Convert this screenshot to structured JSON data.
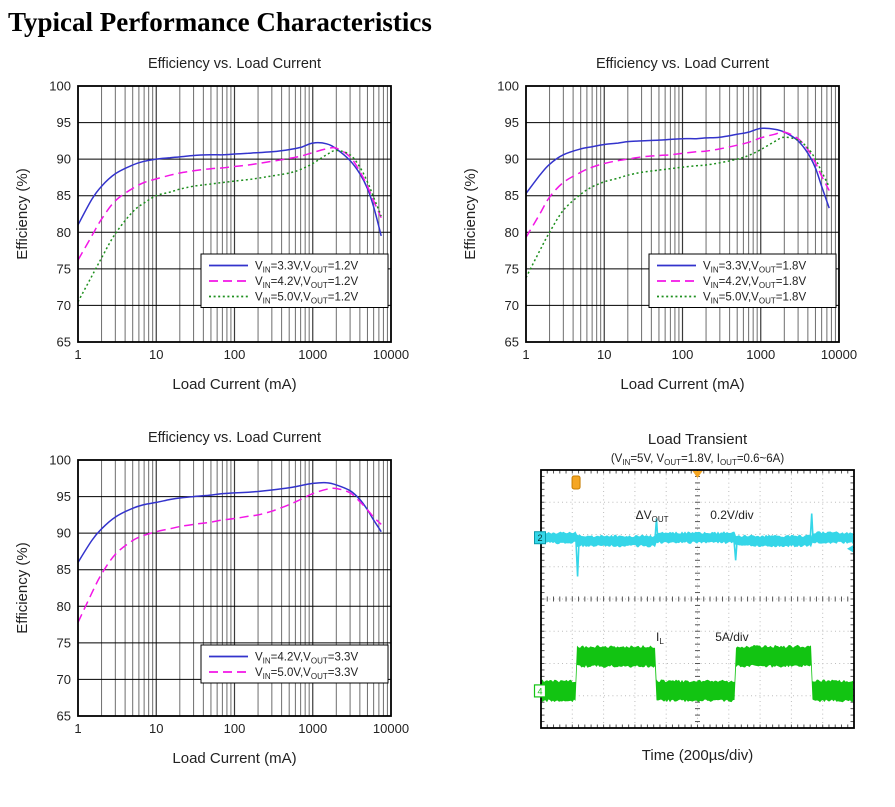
{
  "page": {
    "title": "Typical Performance Characteristics"
  },
  "colors": {
    "blue": "#3333cc",
    "magenta": "#f316e6",
    "green": "#1d8f1d",
    "scope_cyan": "#35d6e8",
    "scope_green": "#12c412",
    "orange": "#f5a623",
    "grid_minor": "#6e6e6e",
    "grid_major": "#3a3a3a",
    "axis": "#000000",
    "text": "#222222",
    "scope_grid": "#bdbdbd",
    "scope_ticks": "#555555"
  },
  "chart_data": [
    {
      "type": "line",
      "title": "Efficiency vs. Load Current",
      "xlabel": "Load Current (mA)",
      "ylabel": "Efficiency (%)",
      "xscale": "log",
      "xlim": [
        1,
        10000
      ],
      "ylim": [
        65,
        100
      ],
      "xticks": [
        1,
        10,
        100,
        1000,
        10000
      ],
      "yticks": [
        65,
        70,
        75,
        80,
        85,
        90,
        95,
        100
      ],
      "legend_position": "bottom-right",
      "series": [
        {
          "vin": "3.3V",
          "vout": "1.2V",
          "color": "blue",
          "style": "solid",
          "x": [
            1,
            1.5,
            2,
            3,
            5,
            7,
            10,
            15,
            20,
            30,
            50,
            70,
            100,
            150,
            200,
            300,
            500,
            700,
            1000,
            1500,
            2000,
            3000,
            4000,
            5000,
            6000,
            7500
          ],
          "y": [
            81.0,
            84.5,
            86.3,
            88.0,
            89.2,
            89.7,
            90.0,
            90.2,
            90.3,
            90.5,
            90.6,
            90.6,
            90.7,
            90.8,
            90.9,
            91.0,
            91.3,
            91.6,
            92.2,
            92.1,
            91.4,
            89.8,
            88.0,
            86.0,
            83.5,
            79.5
          ]
        },
        {
          "vin": "4.2V",
          "vout": "1.2V",
          "color": "magenta",
          "style": "dash",
          "x": [
            1,
            1.5,
            2,
            3,
            5,
            7,
            10,
            15,
            20,
            30,
            50,
            70,
            100,
            150,
            200,
            300,
            500,
            700,
            1000,
            1500,
            2000,
            3000,
            4000,
            5000,
            6000,
            7500
          ],
          "y": [
            76.2,
            79.5,
            81.8,
            84.3,
            86.0,
            86.8,
            87.3,
            87.8,
            88.1,
            88.4,
            88.7,
            88.8,
            89.0,
            89.2,
            89.4,
            89.7,
            90.1,
            90.4,
            90.9,
            91.4,
            91.5,
            90.3,
            88.3,
            86.3,
            84.3,
            82.0
          ]
        },
        {
          "vin": "5.0V",
          "vout": "1.2V",
          "color": "green",
          "style": "dot",
          "x": [
            1,
            1.5,
            2,
            3,
            5,
            7,
            10,
            15,
            20,
            30,
            50,
            70,
            100,
            150,
            200,
            300,
            500,
            700,
            1000,
            1500,
            2000,
            3000,
            4000,
            5000,
            6000,
            7500
          ],
          "y": [
            70.5,
            74.0,
            76.5,
            79.8,
            82.8,
            84.0,
            85.0,
            85.5,
            85.9,
            86.3,
            86.6,
            86.8,
            87.0,
            87.2,
            87.4,
            87.7,
            88.1,
            88.6,
            89.4,
            90.6,
            91.2,
            90.6,
            88.9,
            86.9,
            84.8,
            82.2
          ]
        }
      ]
    },
    {
      "type": "line",
      "title": "Efficiency vs. Load Current",
      "xlabel": "Load Current (mA)",
      "ylabel": "Efficiency (%)",
      "xscale": "log",
      "xlim": [
        1,
        10000
      ],
      "ylim": [
        65,
        100
      ],
      "xticks": [
        1,
        10,
        100,
        1000,
        10000
      ],
      "yticks": [
        65,
        70,
        75,
        80,
        85,
        90,
        95,
        100
      ],
      "legend_position": "bottom-right",
      "series": [
        {
          "vin": "3.3V",
          "vout": "1.8V",
          "color": "blue",
          "style": "solid",
          "x": [
            1,
            1.5,
            2,
            3,
            5,
            7,
            10,
            15,
            20,
            30,
            50,
            70,
            100,
            150,
            200,
            300,
            500,
            700,
            1000,
            1500,
            2000,
            3000,
            4000,
            5000,
            6000,
            7500
          ],
          "y": [
            85.3,
            87.8,
            89.3,
            90.6,
            91.4,
            91.7,
            92.0,
            92.2,
            92.4,
            92.5,
            92.6,
            92.7,
            92.8,
            92.8,
            92.9,
            93.0,
            93.4,
            93.7,
            94.2,
            94.1,
            93.7,
            92.5,
            90.8,
            88.8,
            86.3,
            83.3
          ]
        },
        {
          "vin": "4.2V",
          "vout": "1.8V",
          "color": "magenta",
          "style": "dash",
          "x": [
            1,
            1.5,
            2,
            3,
            5,
            7,
            10,
            15,
            20,
            30,
            50,
            70,
            100,
            150,
            200,
            300,
            500,
            700,
            1000,
            1500,
            2000,
            3000,
            4000,
            5000,
            6000,
            7500
          ],
          "y": [
            79.3,
            82.5,
            84.8,
            86.8,
            88.2,
            88.9,
            89.4,
            89.8,
            90.0,
            90.3,
            90.5,
            90.6,
            90.8,
            91.0,
            91.1,
            91.4,
            91.9,
            92.3,
            92.9,
            93.4,
            93.7,
            92.8,
            91.3,
            89.5,
            87.7,
            85.7
          ]
        },
        {
          "vin": "5.0V",
          "vout": "1.8V",
          "color": "green",
          "style": "dot",
          "x": [
            1,
            1.5,
            2,
            3,
            5,
            7,
            10,
            15,
            20,
            30,
            50,
            70,
            100,
            150,
            200,
            300,
            500,
            700,
            1000,
            1500,
            2000,
            3000,
            4000,
            5000,
            6000,
            7500
          ],
          "y": [
            73.8,
            77.5,
            80.0,
            83.0,
            85.2,
            86.2,
            86.9,
            87.4,
            87.8,
            88.2,
            88.5,
            88.7,
            88.9,
            89.1,
            89.2,
            89.5,
            90.0,
            90.5,
            91.3,
            92.4,
            93.0,
            92.6,
            91.5,
            90.0,
            88.3,
            86.2
          ]
        }
      ]
    },
    {
      "type": "line",
      "title": "Efficiency vs. Load Current",
      "xlabel": "Load Current (mA)",
      "ylabel": "Efficiency (%)",
      "xscale": "log",
      "xlim": [
        1,
        10000
      ],
      "ylim": [
        65,
        100
      ],
      "xticks": [
        1,
        10,
        100,
        1000,
        10000
      ],
      "yticks": [
        65,
        70,
        75,
        80,
        85,
        90,
        95,
        100
      ],
      "legend_position": "bottom-right",
      "series": [
        {
          "vin": "4.2V",
          "vout": "3.3V",
          "color": "blue",
          "style": "solid",
          "x": [
            1,
            1.5,
            2,
            3,
            5,
            7,
            10,
            15,
            20,
            30,
            50,
            70,
            100,
            150,
            200,
            300,
            500,
            700,
            1000,
            1500,
            2000,
            3000,
            4000,
            5000,
            6000,
            7500
          ],
          "y": [
            86.0,
            89.0,
            90.6,
            92.2,
            93.4,
            93.9,
            94.2,
            94.6,
            94.8,
            95.0,
            95.2,
            95.4,
            95.5,
            95.6,
            95.7,
            95.9,
            96.2,
            96.5,
            96.8,
            96.9,
            96.6,
            95.8,
            94.6,
            93.2,
            91.8,
            90.2
          ]
        },
        {
          "vin": "5.0V",
          "vout": "3.3V",
          "color": "magenta",
          "style": "dash",
          "x": [
            1,
            1.5,
            2,
            3,
            5,
            7,
            10,
            15,
            20,
            30,
            50,
            70,
            100,
            150,
            200,
            300,
            500,
            700,
            1000,
            1500,
            2000,
            3000,
            4000,
            5000,
            6000,
            7500
          ],
          "y": [
            77.8,
            81.8,
            84.4,
            87.1,
            89.0,
            89.7,
            90.2,
            90.6,
            90.9,
            91.2,
            91.5,
            91.8,
            92.0,
            92.3,
            92.5,
            93.0,
            93.9,
            94.6,
            95.4,
            96.0,
            96.1,
            95.5,
            94.3,
            93.2,
            92.2,
            91.2
          ]
        }
      ]
    },
    {
      "type": "scope",
      "title": "Load Transient",
      "subtitle_vin": "5V",
      "subtitle_vout": "1.8V",
      "subtitle_iout": "0.6~6A",
      "xlabel": "Time (200µs/div)",
      "hdiv": 10,
      "vdiv": 8,
      "vout_trace": {
        "label_prefix": "ΔV",
        "label_sub": "OUT",
        "scale_label": "0.2V/div",
        "channel": "2",
        "baseline_div": 2.1,
        "halfwidth_div": 0.16,
        "shift_div": 0.1,
        "high_intervals_div": [
          [
            1.15,
            3.67
          ],
          [
            6.2,
            8.63
          ]
        ],
        "down_spikes": [
          {
            "t": 1.15,
            "d": 1.2
          },
          {
            "t": 6.2,
            "d": 0.7
          }
        ],
        "up_spikes": [
          {
            "t": 3.67,
            "h": 0.6
          },
          {
            "t": 8.63,
            "h": 0.75
          }
        ]
      },
      "il_trace": {
        "label_prefix": "I",
        "label_sub": "L",
        "scale_label": "5A/div",
        "channel": "4",
        "low_div": 6.85,
        "high_div": 5.78,
        "halfwidth_div": 0.31,
        "edges_div": [
          1.15,
          3.67,
          6.2,
          8.63
        ],
        "low_level_A": 0.6,
        "high_level_A": 6
      }
    }
  ]
}
